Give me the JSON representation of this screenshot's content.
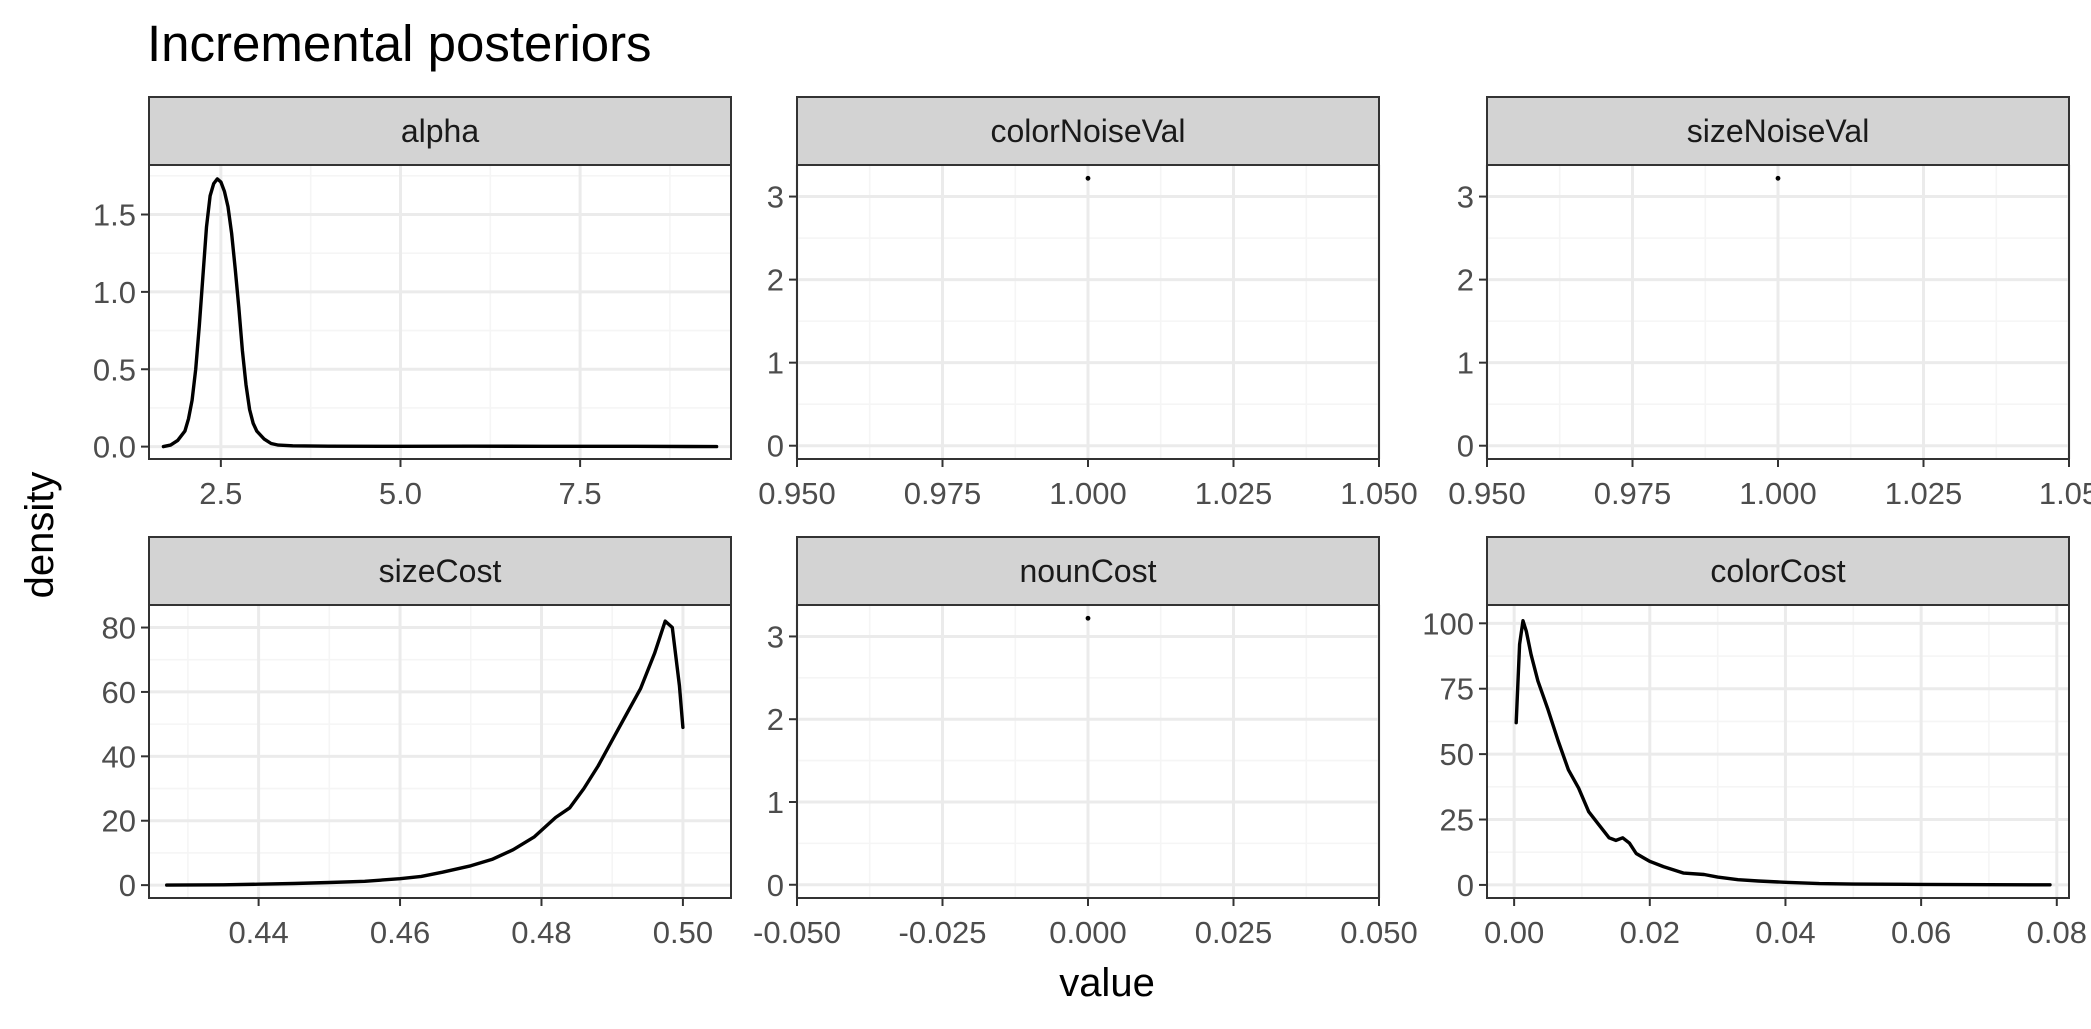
{
  "chart_data": {
    "type": "facet-density",
    "title": "Incremental posteriors",
    "xlabel": "value",
    "ylabel": "density",
    "grid": true,
    "legend": "none",
    "colors": {
      "line": "#000000",
      "strip_fill": "#d3d3d3",
      "strip_border": "#333333",
      "panel_border": "#333333",
      "grid_major": "#ebebeb",
      "grid_minor": "#f5f5f5",
      "tick_text": "#4d4d4d"
    },
    "panels": [
      {
        "name": "alpha",
        "xlim": [
          1.5,
          9.6
        ],
        "ylim": [
          -0.08,
          1.82
        ],
        "xticks": [
          2.5,
          5.0,
          7.5
        ],
        "xtick_labels": [
          "2.5",
          "5.0",
          "7.5"
        ],
        "yticks": [
          0,
          0.5,
          1.0,
          1.5
        ],
        "ytick_labels": [
          "0.0",
          "0.5",
          "1.0",
          "1.5"
        ],
        "series": [
          {
            "x": [
              1.7,
              1.8,
              1.9,
              2.0,
              2.05,
              2.1,
              2.15,
              2.2,
              2.25,
              2.3,
              2.35,
              2.4,
              2.45,
              2.5,
              2.55,
              2.6,
              2.65,
              2.7,
              2.75,
              2.8,
              2.85,
              2.9,
              2.95,
              3.0,
              3.1,
              3.2,
              3.3,
              3.5,
              4.0,
              5.0,
              6.0,
              7.0,
              8.0,
              9.0,
              9.4
            ],
            "y": [
              0.0,
              0.01,
              0.04,
              0.1,
              0.18,
              0.3,
              0.5,
              0.78,
              1.1,
              1.42,
              1.62,
              1.7,
              1.73,
              1.71,
              1.65,
              1.55,
              1.38,
              1.15,
              0.9,
              0.62,
              0.4,
              0.24,
              0.15,
              0.1,
              0.05,
              0.02,
              0.01,
              0.005,
              0.003,
              0.002,
              0.003,
              0.002,
              0.002,
              0.001,
              0.0
            ]
          }
        ]
      },
      {
        "name": "colorNoiseVal",
        "xlim": [
          0.95,
          1.05
        ],
        "ylim": [
          -0.16,
          3.38
        ],
        "xticks": [
          0.95,
          0.975,
          1.0,
          1.025,
          1.05
        ],
        "xtick_labels": [
          "0.950",
          "0.975",
          "1.000",
          "1.025",
          "1.050"
        ],
        "yticks": [
          0,
          1,
          2,
          3
        ],
        "ytick_labels": [
          "0",
          "1",
          "2",
          "3"
        ],
        "points": [
          {
            "x": 1.0,
            "y": 3.22
          }
        ]
      },
      {
        "name": "sizeNoiseVal",
        "xlim": [
          0.95,
          1.05
        ],
        "ylim": [
          -0.16,
          3.38
        ],
        "xticks": [
          0.95,
          0.975,
          1.0,
          1.025,
          1.05
        ],
        "xtick_labels": [
          "0.950",
          "0.975",
          "1.000",
          "1.025",
          "1.05"
        ],
        "yticks": [
          0,
          1,
          2,
          3
        ],
        "ytick_labels": [
          "0",
          "1",
          "2",
          "3"
        ],
        "points": [
          {
            "x": 1.0,
            "y": 3.22
          }
        ]
      },
      {
        "name": "sizeCost",
        "xlim": [
          0.4245,
          0.5068
        ],
        "ylim": [
          -4,
          87
        ],
        "xticks": [
          0.44,
          0.46,
          0.48,
          0.5
        ],
        "xtick_labels": [
          "0.44",
          "0.46",
          "0.48",
          "0.50"
        ],
        "yticks": [
          0,
          20,
          40,
          60,
          80
        ],
        "ytick_labels": [
          "0",
          "20",
          "40",
          "60",
          "80"
        ],
        "series": [
          {
            "x": [
              0.427,
              0.435,
              0.44,
              0.445,
              0.45,
              0.455,
              0.46,
              0.463,
              0.466,
              0.47,
              0.473,
              0.476,
              0.479,
              0.482,
              0.484,
              0.486,
              0.488,
              0.49,
              0.492,
              0.494,
              0.496,
              0.4975,
              0.4985,
              0.4995,
              0.5
            ],
            "y": [
              0.0,
              0.1,
              0.3,
              0.5,
              0.8,
              1.2,
              2.0,
              2.7,
              4.0,
              6.0,
              8.0,
              11.0,
              15.0,
              21.0,
              24.0,
              30.0,
              37.0,
              45.0,
              53.0,
              61.0,
              72.0,
              82.0,
              80.0,
              62.0,
              49.0
            ]
          }
        ]
      },
      {
        "name": "nounCost",
        "xlim": [
          -0.05,
          0.05
        ],
        "ylim": [
          -0.16,
          3.38
        ],
        "xticks": [
          -0.05,
          -0.025,
          0.0,
          0.025,
          0.05
        ],
        "xtick_labels": [
          "-0.050",
          "-0.025",
          "0.000",
          "0.025",
          "0.050"
        ],
        "yticks": [
          0,
          1,
          2,
          3
        ],
        "ytick_labels": [
          "0",
          "1",
          "2",
          "3"
        ],
        "points": [
          {
            "x": 0.0,
            "y": 3.22
          }
        ]
      },
      {
        "name": "colorCost",
        "xlim": [
          -0.004,
          0.0818
        ],
        "ylim": [
          -5,
          107
        ],
        "xticks": [
          0.0,
          0.02,
          0.04,
          0.06,
          0.08
        ],
        "xtick_labels": [
          "0.00",
          "0.02",
          "0.04",
          "0.06",
          "0.08"
        ],
        "yticks": [
          0,
          25,
          50,
          75,
          100
        ],
        "ytick_labels": [
          "0",
          "25",
          "50",
          "75",
          "100"
        ],
        "series": [
          {
            "x": [
              0.0003,
              0.0008,
              0.0013,
              0.0018,
              0.0025,
              0.0035,
              0.005,
              0.0065,
              0.008,
              0.0095,
              0.011,
              0.0125,
              0.014,
              0.015,
              0.016,
              0.017,
              0.018,
              0.019,
              0.02,
              0.022,
              0.025,
              0.028,
              0.03,
              0.033,
              0.036,
              0.04,
              0.045,
              0.05,
              0.06,
              0.07,
              0.079
            ],
            "y": [
              62.0,
              92.0,
              101.0,
              97.0,
              88.0,
              78.0,
              67.0,
              55.0,
              44.0,
              37.0,
              28.0,
              23.0,
              18.0,
              17.0,
              18.0,
              16.0,
              12.0,
              10.5,
              9.0,
              7.0,
              4.5,
              4.0,
              3.0,
              2.0,
              1.5,
              1.0,
              0.5,
              0.3,
              0.2,
              0.1,
              0.05
            ]
          }
        ]
      }
    ]
  }
}
